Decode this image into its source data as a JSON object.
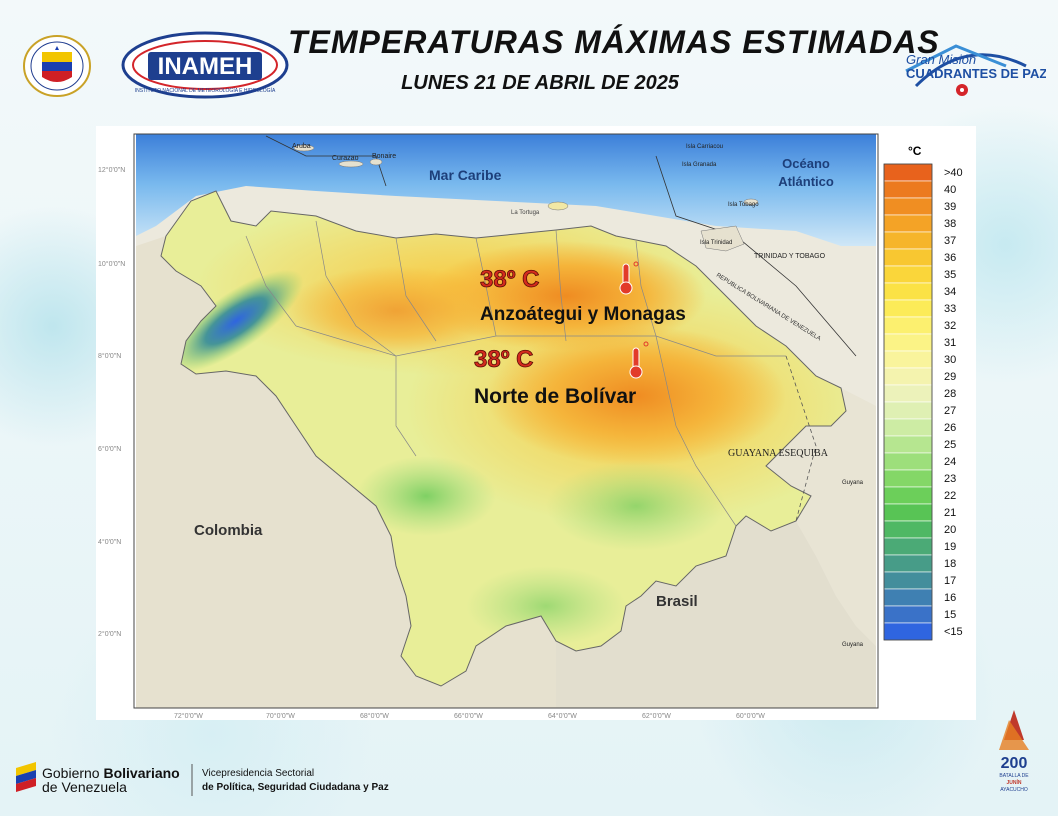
{
  "header": {
    "title": "TEMPERATURAS MÁXIMAS ESTIMADAS",
    "subtitle": "LUNES 21 DE ABRIL DE 2025",
    "inameh_logo_text": "INAMEH",
    "inameh_logo_ring_text": "INSTITUTO NACIONAL DE METEOROLOGÍA E HIDROLOGÍA",
    "gran_mision_line1": "Gran Misión",
    "gran_mision_line2": "CUADRANTES DE PAZ",
    "shield_ring_text": "Ministerio del Poder Popular para Relaciones Interiores, Justicia y Paz"
  },
  "map": {
    "labels": {
      "mar_caribe": "Mar Caribe",
      "oceano_line1": "Océano",
      "oceano_line2": "Atlántico",
      "colombia": "Colombia",
      "brasil": "Brasil",
      "guayana": "GUAYANA ESEQUIBA",
      "trinidad_tobago": "TRINIDAD Y TOBAGO",
      "rep_bolivariana": "REPUBLICA BOLIVARIANA DE VENEZUELA",
      "aruba": "Aruba",
      "curazao": "Curazao",
      "bonaire": "Bonaire",
      "la_tortuga": "La Tortuga",
      "isla_trinidad": "Isla Trinidad",
      "isla_tobago": "Isla Tobago",
      "isla_granada": "Isla Granada",
      "isla_carriacou": "Isla Carriacou",
      "guyana_1": "Guyana",
      "guyana_2": "Guyana"
    },
    "lat_ticks": [
      "12°0'0\"N",
      "10°0'0\"N",
      "8°0'0\"N",
      "6°0'0\"N",
      "4°0'0\"N",
      "2°0'0\"N"
    ],
    "lon_ticks": [
      "72°0'0\"W",
      "70°0'0\"W",
      "68°0'0\"W",
      "66°0'0\"W",
      "64°0'0\"W",
      "62°0'0\"W",
      "60°0'0\"W"
    ],
    "annotations": [
      {
        "temp": "38º C",
        "place": "Anzoátegui y Monagas"
      },
      {
        "temp": "38º C",
        "place": "Norte de Bolívar"
      }
    ]
  },
  "legend": {
    "unit": "°C",
    "items": [
      {
        "label": ">40",
        "color": "#e8621c"
      },
      {
        "label": "40",
        "color": "#ec7a1f"
      },
      {
        "label": "39",
        "color": "#f08e22"
      },
      {
        "label": "38",
        "color": "#f4a326"
      },
      {
        "label": "37",
        "color": "#f6b52b"
      },
      {
        "label": "36",
        "color": "#f8c731"
      },
      {
        "label": "35",
        "color": "#fad63a"
      },
      {
        "label": "34",
        "color": "#fbe245"
      },
      {
        "label": "33",
        "color": "#fceb58"
      },
      {
        "label": "32",
        "color": "#fcf06f"
      },
      {
        "label": "31",
        "color": "#fbf386"
      },
      {
        "label": "30",
        "color": "#f9f49c"
      },
      {
        "label": "29",
        "color": "#f4f3ae"
      },
      {
        "label": "28",
        "color": "#ecf2ba"
      },
      {
        "label": "27",
        "color": "#dff0b3"
      },
      {
        "label": "26",
        "color": "#cdeca4"
      },
      {
        "label": "25",
        "color": "#b6e690"
      },
      {
        "label": "24",
        "color": "#9ddf7b"
      },
      {
        "label": "23",
        "color": "#84d767"
      },
      {
        "label": "22",
        "color": "#6ccf5a"
      },
      {
        "label": "21",
        "color": "#58c455"
      },
      {
        "label": "20",
        "color": "#4fb864"
      },
      {
        "label": "19",
        "color": "#4baa76"
      },
      {
        "label": "18",
        "color": "#479c88"
      },
      {
        "label": "17",
        "color": "#438e9c"
      },
      {
        "label": "16",
        "color": "#3f80b2"
      },
      {
        "label": "15",
        "color": "#3a72c8"
      },
      {
        "label": "<15",
        "color": "#2f65e0"
      }
    ]
  },
  "footer": {
    "gob_line1a": "Gobierno ",
    "gob_line1b": "Bolivariano",
    "gob_line2": "de Venezuela",
    "vice_line1": "Vicepresidencia Sectorial",
    "vice_line2": "de Política, Seguridad Ciudadana y Paz",
    "badge_200": "200",
    "badge_text1": "BATALLA DE",
    "badge_text2": "JUNÍN",
    "badge_text3": "AYACUCHO"
  }
}
